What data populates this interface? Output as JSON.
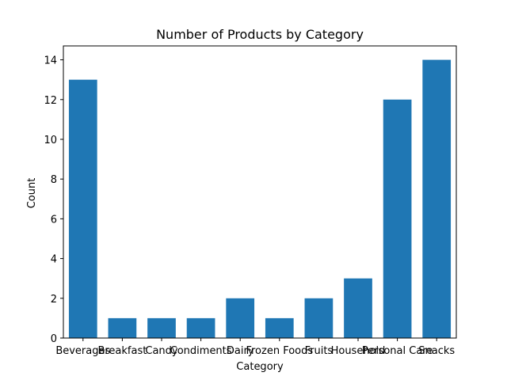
{
  "chart_data": {
    "type": "bar",
    "title": "Number of Products by Category",
    "xlabel": "Category",
    "ylabel": "Count",
    "categories": [
      "Beverages",
      "Breakfast",
      "Candy",
      "Condiments",
      "Dairy",
      "Frozen Foods",
      "Fruits",
      "Household",
      "Personal Care",
      "Snacks"
    ],
    "values": [
      13,
      1,
      1,
      1,
      2,
      1,
      2,
      3,
      12,
      14
    ],
    "ylim": [
      0,
      14.7
    ],
    "yticks": [
      0,
      2,
      4,
      6,
      8,
      10,
      12,
      14
    ],
    "bar_color": "#1f77b4",
    "grid": false,
    "legend": "none"
  }
}
